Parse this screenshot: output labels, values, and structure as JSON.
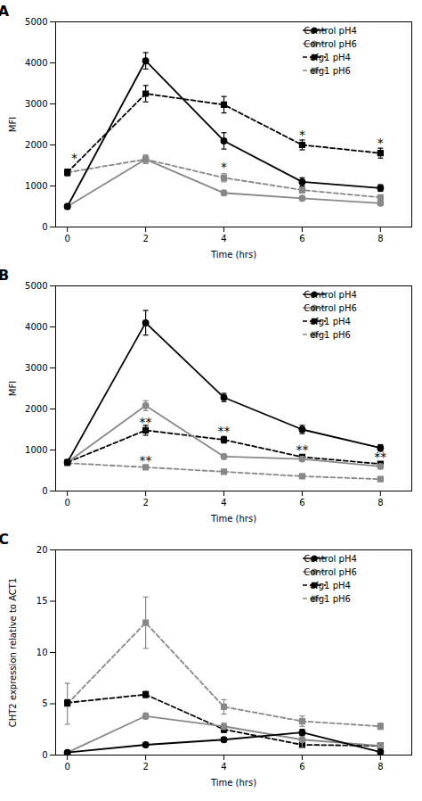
{
  "chart_data": [
    {
      "type": "line",
      "title": "A",
      "xlabel": "Time (hrs)",
      "ylabel": "MFI",
      "x": [
        0,
        2,
        4,
        6,
        8
      ],
      "xlim": [
        -0.3,
        8.8
      ],
      "xticks": [
        0,
        2,
        4,
        6,
        8
      ],
      "ylim": [
        0,
        5000
      ],
      "yticks": [
        0,
        1000,
        2000,
        3000,
        4000,
        5000
      ],
      "grid": false,
      "legend": "upper right",
      "series": [
        {
          "name": "Control pH4",
          "color": "#000000",
          "marker": "circle",
          "line_style": "solid",
          "values": [
            500,
            4050,
            2100,
            1100,
            950
          ],
          "errors": [
            50,
            200,
            200,
            100,
            80
          ]
        },
        {
          "name": "Control pH6",
          "color": "#888888",
          "marker": "circle",
          "line_style": "solid",
          "values": [
            500,
            1650,
            830,
            700,
            580
          ],
          "errors": [
            50,
            100,
            60,
            50,
            40
          ]
        },
        {
          "name": "efg1 pH4",
          "color": "#000000",
          "marker": "square",
          "line_style": "dashed",
          "values": [
            1330,
            3250,
            2980,
            2000,
            1800
          ],
          "errors": [
            80,
            200,
            200,
            120,
            120
          ]
        },
        {
          "name": "efg1 pH6",
          "color": "#888888",
          "marker": "square",
          "line_style": "dashed",
          "values": [
            1330,
            1650,
            1200,
            900,
            720
          ],
          "errors": [
            80,
            100,
            100,
            70,
            60
          ]
        }
      ],
      "annotations": [
        {
          "text": "*",
          "x": 0.18,
          "y": 1580
        },
        {
          "text": "*",
          "x": 4,
          "y": 1350
        },
        {
          "text": "*",
          "x": 6,
          "y": 2150
        },
        {
          "text": "*",
          "x": 8,
          "y": 1950
        }
      ]
    },
    {
      "type": "line",
      "title": "B",
      "xlabel": "Time (hrs)",
      "ylabel": "MFI",
      "x": [
        0,
        2,
        4,
        6,
        8
      ],
      "xlim": [
        -0.3,
        8.8
      ],
      "xticks": [
        0,
        2,
        4,
        6,
        8
      ],
      "ylim": [
        0,
        5000
      ],
      "yticks": [
        0,
        1000,
        2000,
        3000,
        4000,
        5000
      ],
      "grid": false,
      "legend": "upper right",
      "series": [
        {
          "name": "Control pH4",
          "color": "#000000",
          "marker": "circle",
          "line_style": "solid",
          "values": [
            700,
            4100,
            2280,
            1500,
            1050
          ],
          "errors": [
            50,
            300,
            100,
            100,
            80
          ]
        },
        {
          "name": "Control pH6",
          "color": "#888888",
          "marker": "circle",
          "line_style": "solid",
          "values": [
            700,
            2080,
            840,
            780,
            600
          ],
          "errors": [
            50,
            120,
            60,
            50,
            40
          ]
        },
        {
          "name": "efg1 pH4",
          "color": "#000000",
          "marker": "square",
          "line_style": "dashed",
          "values": [
            700,
            1480,
            1250,
            830,
            660
          ],
          "errors": [
            50,
            120,
            80,
            60,
            50
          ]
        },
        {
          "name": "efg1 pH6",
          "color": "#888888",
          "marker": "square",
          "line_style": "dashed",
          "values": [
            680,
            580,
            470,
            360,
            290
          ],
          "errors": [
            50,
            50,
            40,
            30,
            30
          ]
        }
      ],
      "annotations": [
        {
          "text": "**",
          "x": 2,
          "y": 640
        },
        {
          "text": "**",
          "x": 2,
          "y": 1580
        },
        {
          "text": "**",
          "x": 4,
          "y": 1360
        },
        {
          "text": "**",
          "x": 6,
          "y": 900
        },
        {
          "text": "**",
          "x": 8,
          "y": 720
        }
      ]
    },
    {
      "type": "line",
      "title": "C",
      "xlabel": "Time (hrs)",
      "ylabel": "CHT2 expression relative to ACT1",
      "x": [
        0,
        2,
        4,
        6,
        8
      ],
      "xlim": [
        -0.3,
        8.8
      ],
      "xticks": [
        0,
        2,
        4,
        6,
        8
      ],
      "ylim": [
        0,
        20
      ],
      "yticks": [
        0,
        5,
        10,
        15,
        20
      ],
      "grid": false,
      "legend": "upper right",
      "series": [
        {
          "name": "Control pH4",
          "color": "#000000",
          "marker": "circle",
          "line_style": "solid",
          "values": [
            0.25,
            1.0,
            1.5,
            2.2,
            0.3
          ],
          "errors": [
            0.1,
            0.2,
            0.2,
            0.3,
            0.1
          ]
        },
        {
          "name": "Control pH6",
          "color": "#888888",
          "marker": "circle",
          "line_style": "solid",
          "values": [
            0.25,
            3.8,
            2.8,
            1.5,
            0.9
          ],
          "errors": [
            0.1,
            0.3,
            0.3,
            0.8,
            0.2
          ]
        },
        {
          "name": "efg1 pH4",
          "color": "#000000",
          "marker": "square",
          "line_style": "dashed",
          "values": [
            5.1,
            5.9,
            2.5,
            1.0,
            0.9
          ],
          "errors": [
            0.3,
            0.3,
            0.3,
            0.2,
            0.2
          ]
        },
        {
          "name": "efg1 pH6",
          "color": "#888888",
          "marker": "square",
          "line_style": "dashed",
          "values": [
            5.0,
            12.9,
            4.7,
            3.3,
            2.8
          ],
          "errors": [
            2.0,
            2.5,
            0.7,
            0.5,
            0.3
          ]
        }
      ],
      "annotations": []
    }
  ]
}
